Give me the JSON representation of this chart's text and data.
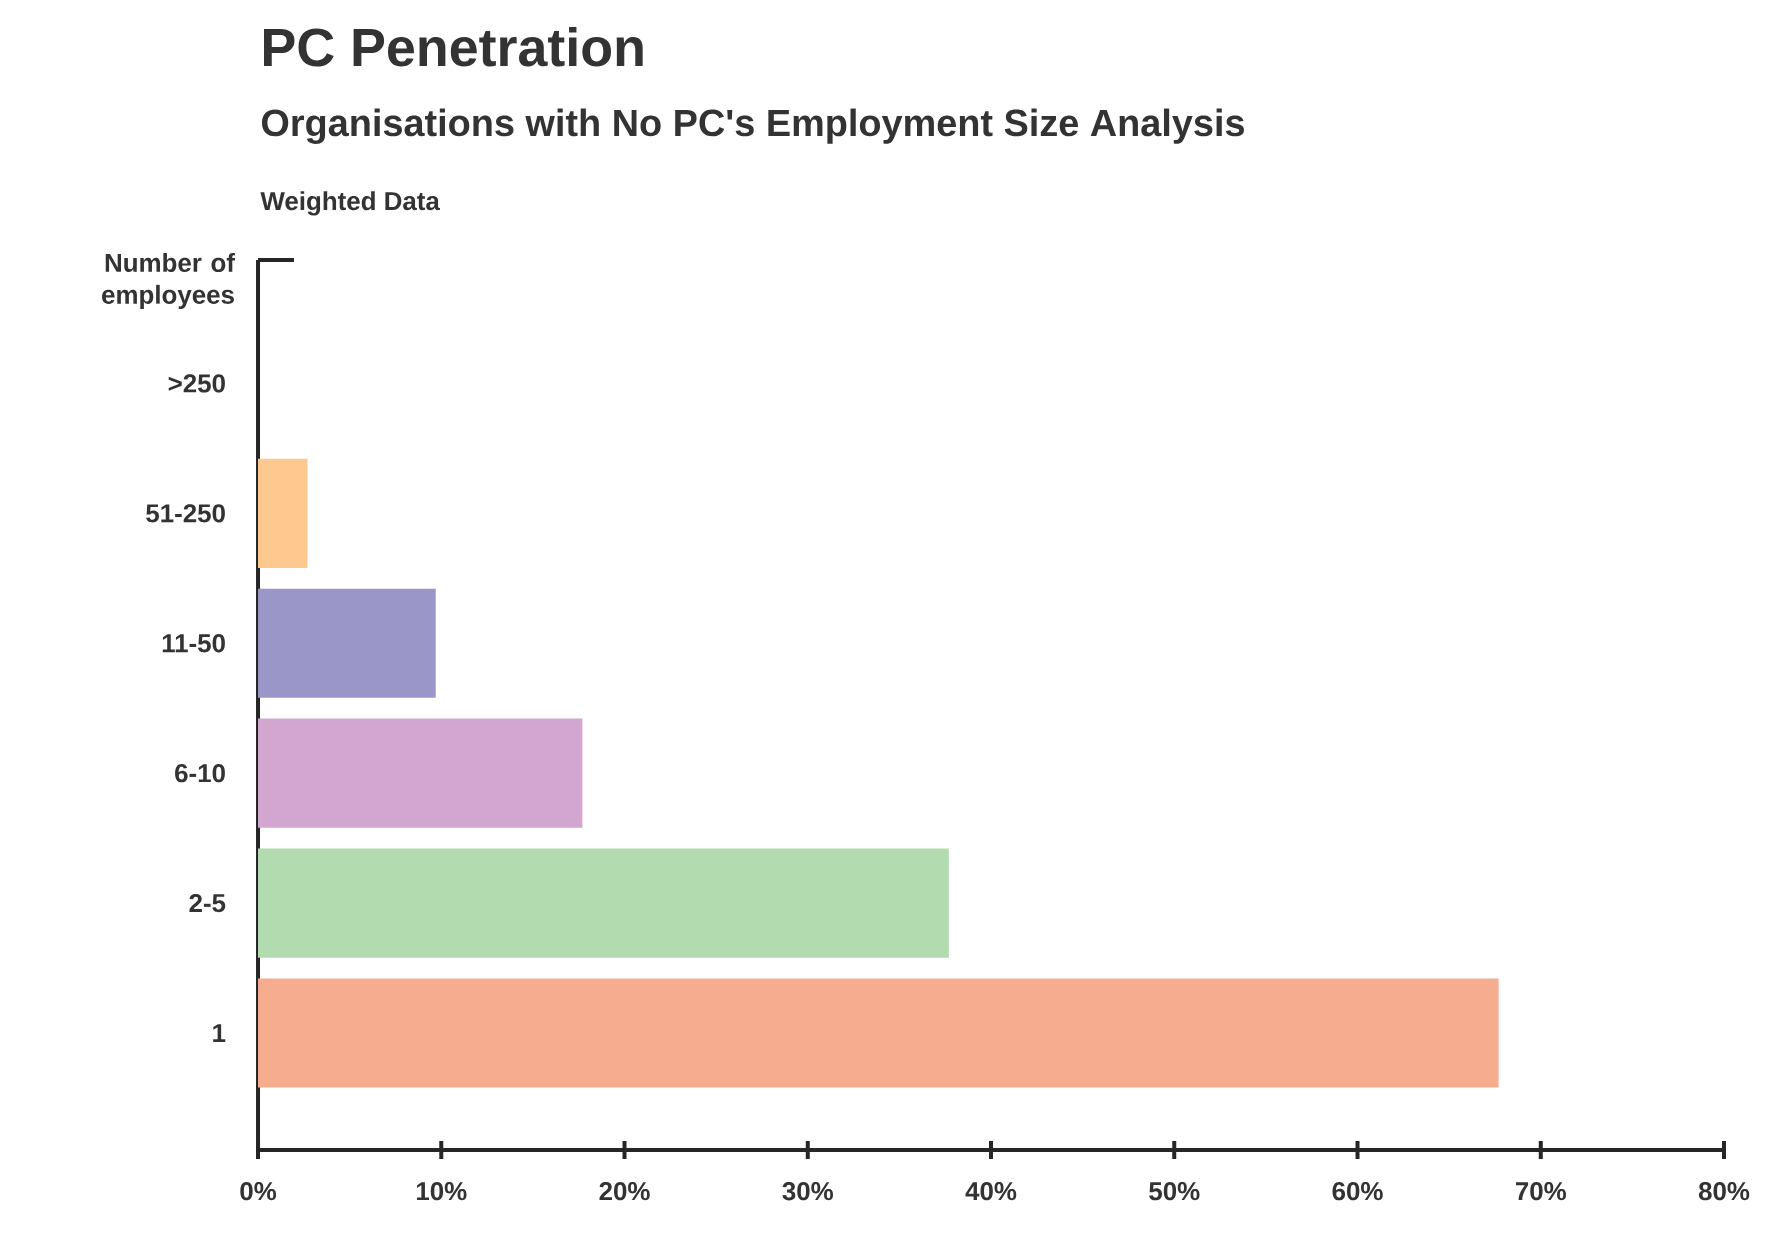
{
  "chart_data": {
    "type": "bar",
    "orientation": "horizontal",
    "title": "PC Penetration",
    "subtitle": "Organisations with No PC's Employment Size Analysis",
    "annotations": [
      "Weighted Data"
    ],
    "ylabel": "Number of employees",
    "categories": [
      ">250",
      "51-250",
      "11-50",
      "6-10",
      "2-5",
      "1"
    ],
    "values": [
      0,
      2.7,
      9.7,
      17.7,
      37.7,
      67.7
    ],
    "colors": [
      "#fdc98f",
      "#fdc98f",
      "#9b96c8",
      "#d2a6cf",
      "#b3dbb0",
      "#f6ac8f"
    ],
    "xlim": [
      0,
      80
    ],
    "xticks": [
      {
        "value": 0,
        "label": "0%"
      },
      {
        "value": 10,
        "label": "10%"
      },
      {
        "value": 20,
        "label": "20%"
      },
      {
        "value": 30,
        "label": "30%"
      },
      {
        "value": 40,
        "label": "40%"
      },
      {
        "value": 50,
        "label": "50%"
      },
      {
        "value": 60,
        "label": "60%"
      },
      {
        "value": 70,
        "label": "70%"
      },
      {
        "value": 80,
        "label": "80%"
      }
    ],
    "grid": false
  }
}
